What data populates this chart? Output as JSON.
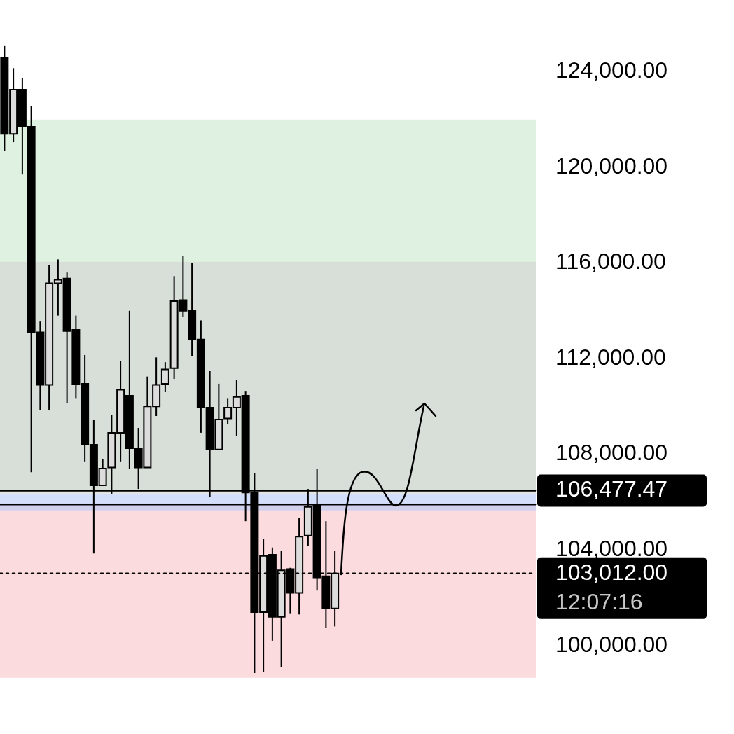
{
  "chart_data": {
    "type": "candlestick",
    "categories": [
      null,
      null,
      null,
      null,
      null,
      null,
      null,
      null,
      null,
      null,
      null,
      null,
      null,
      null,
      null,
      null,
      null,
      null,
      null,
      null,
      null,
      null,
      null,
      null,
      null,
      null,
      null,
      null,
      null,
      null,
      null,
      null,
      null,
      null,
      null,
      null,
      null,
      null,
      null,
      null,
      null,
      null,
      null,
      null,
      null,
      null,
      null,
      null,
      null,
      null,
      null,
      null,
      null,
      null,
      null,
      null,
      null,
      null,
      null,
      null
    ],
    "ohlc": [
      [
        124600,
        125100,
        120700,
        121400
      ],
      [
        121400,
        124150,
        121050,
        123250
      ],
      [
        123250,
        123750,
        119700,
        121700
      ],
      [
        121700,
        122550,
        107250,
        113100
      ],
      [
        113100,
        113550,
        109850,
        110900
      ],
      [
        110900,
        115900,
        109850,
        115150
      ],
      [
        115150,
        116150,
        113800,
        115300
      ],
      [
        115350,
        115600,
        110150,
        113150
      ],
      [
        113200,
        113800,
        110350,
        110950
      ],
      [
        110950,
        112150,
        107700,
        108400
      ],
      [
        108400,
        109450,
        103850,
        106700
      ],
      [
        106700,
        107800,
        106700,
        107400
      ],
      [
        107450,
        109650,
        106350,
        108900
      ],
      [
        108900,
        111900,
        107700,
        110700
      ],
      [
        110450,
        114000,
        107400,
        108250
      ],
      [
        108250,
        109100,
        106550,
        107450
      ],
      [
        107450,
        111250,
        107450,
        110000
      ],
      [
        110000,
        112050,
        109600,
        110900
      ],
      [
        110950,
        111850,
        110600,
        111550
      ],
      [
        111600,
        115450,
        111150,
        114400
      ],
      [
        114450,
        116300,
        113750,
        114000
      ],
      [
        114000,
        116000,
        112100,
        112800
      ],
      [
        112800,
        113600,
        108900,
        109950
      ],
      [
        109950,
        111500,
        106200,
        108200
      ],
      [
        108200,
        110950,
        108200,
        109450
      ],
      [
        109500,
        110350,
        109250,
        109950
      ],
      [
        109950,
        111100,
        108750,
        110400
      ],
      [
        110450,
        110650,
        105200,
        106400
      ],
      [
        106400,
        107200,
        98850,
        101400
      ],
      [
        101400,
        104450,
        98900,
        103750
      ],
      [
        103800,
        104100,
        100200,
        101200
      ],
      [
        101200,
        103950,
        99100,
        103150
      ],
      [
        103200,
        103250,
        101350,
        102200
      ],
      [
        102200,
        105350,
        101300,
        104550
      ],
      [
        104600,
        106550,
        104150,
        105800
      ],
      [
        105850,
        107400,
        102300,
        102850
      ],
      [
        102900,
        105200,
        100750,
        101550
      ],
      [
        101550,
        103950,
        100800,
        103012
      ],
      null,
      null,
      null,
      null,
      null,
      null,
      null,
      null,
      null,
      null,
      null,
      null,
      null,
      null,
      null,
      null,
      null,
      null,
      null,
      null,
      null,
      null
    ],
    "colors": [
      "#000000",
      "#dcdcdc",
      "#000000",
      "#000000",
      "#000000",
      "#dcdcdc",
      "#dcdcdc",
      "#000000",
      "#000000",
      "#000000",
      "#000000",
      "#dcdcdc",
      "#dcdcdc",
      "#dcdcdc",
      "#000000",
      "#000000",
      "#dcdcdc",
      "#dcdcdc",
      "#dcdcdc",
      "#dcdcdc",
      "#000000",
      "#000000",
      "#000000",
      "#000000",
      "#dcdcdc",
      "#dcdcdc",
      "#dcdcdc",
      "#000000",
      "#000000",
      "#dcdcdc",
      "#000000",
      "#dcdcdc",
      "#000000",
      "#dcdcdc",
      "#dcdcdc",
      "#000000",
      "#000000",
      "#dcdcdc",
      null,
      null,
      null,
      null,
      null,
      null,
      null,
      null,
      null,
      null,
      null,
      null,
      null,
      null,
      null,
      null,
      null,
      null,
      null,
      null,
      null,
      null
    ],
    "ylim": [
      96300,
      127000
    ],
    "yticks": [
      {
        "value": 100000,
        "label": "100,000.00"
      },
      {
        "value": 104000,
        "label": "104,000.00"
      },
      {
        "value": 108000,
        "label": "108,000.00"
      },
      {
        "value": 112000,
        "label": "112,000.00"
      },
      {
        "value": 116000,
        "label": "116,000.00"
      },
      {
        "value": 120000,
        "label": "120,000.00"
      },
      {
        "value": 124000,
        "label": "124,000.00"
      }
    ],
    "tick_labels": "y",
    "grid": false,
    "bands": [
      {
        "axis": "y",
        "from": 106400,
        "to": 122000,
        "color": "#c9e7cb"
      },
      {
        "axis": "y",
        "from": 106350,
        "to": 116050,
        "color": "#d3d3d3"
      },
      {
        "axis": "y",
        "from": 98650,
        "to": 105950,
        "color": "#f9c3c8"
      },
      {
        "axis": "y",
        "from": 105650,
        "to": 106350,
        "color": "#b4c8f7"
      }
    ],
    "ref_lines": [
      {
        "axis": "y",
        "value": 106477.47,
        "label": "106,477.47",
        "color": "#000000",
        "line_style": "solid"
      },
      {
        "axis": "y",
        "value": 103012,
        "label": "103,012.00",
        "color": "#000000",
        "line_style": "dotted"
      },
      {
        "axis": "y",
        "value": 105900,
        "color": "#000000",
        "line_style": "solid"
      }
    ],
    "annotations": [
      "12:07:16"
    ]
  }
}
